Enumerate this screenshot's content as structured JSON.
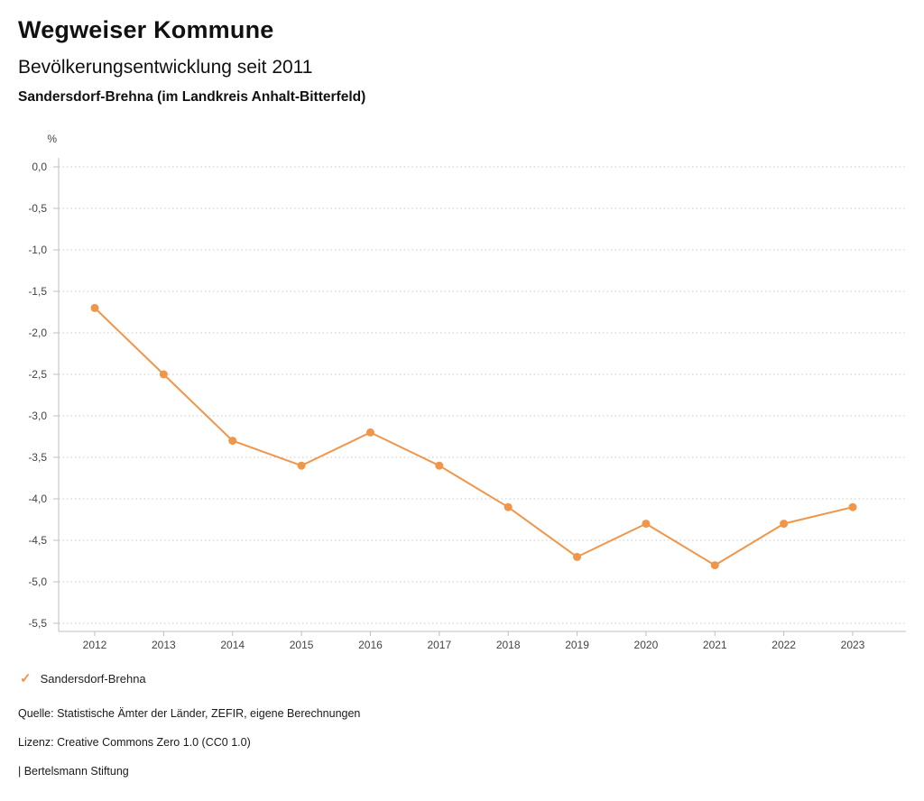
{
  "header": {
    "title": "Wegweiser Kommune",
    "subtitle": "Bevölkerungsentwicklung seit 2011",
    "location": "Sandersdorf-Brehna (im Landkreis Anhalt-Bitterfeld)"
  },
  "legend": {
    "check_icon": "✓",
    "label": "Sandersdorf-Brehna"
  },
  "footer": {
    "source": "Quelle: Statistische Ämter der Länder, ZEFIR, eigene Berechnungen",
    "license": "Lizenz: Creative Commons Zero 1.0 (CC0 1.0)",
    "attribution": "| Bertelsmann Stiftung"
  },
  "colors": {
    "series_orange": "#f0964a",
    "gridline": "#c9c9c9",
    "axis": "#bfbfbf",
    "tick_text": "#444444"
  },
  "chart_data": {
    "type": "line",
    "title": "Bevölkerungsentwicklung seit 2011",
    "subtitle": "Sandersdorf-Brehna (im Landkreis Anhalt-Bitterfeld)",
    "unit": "%",
    "x": [
      2012,
      2013,
      2014,
      2015,
      2016,
      2017,
      2018,
      2019,
      2020,
      2021,
      2022,
      2023
    ],
    "series": [
      {
        "name": "Sandersdorf-Brehna",
        "color": "#f0964a",
        "values": [
          -1.7,
          -2.5,
          -3.3,
          -3.6,
          -3.2,
          -3.6,
          -4.1,
          -4.7,
          -4.3,
          -4.8,
          -4.3,
          -4.1
        ]
      }
    ],
    "ylim": [
      -5.5,
      0.0
    ],
    "ytick_step": 0.5,
    "yticks": [
      "0,0",
      "-0,5",
      "-1,0",
      "-1,5",
      "-2,0",
      "-2,5",
      "-3,0",
      "-3,5",
      "-4,0",
      "-4,5",
      "-5,0",
      "-5,5"
    ],
    "grid": "horizontal-dotted",
    "legend_position": "bottom-left"
  }
}
